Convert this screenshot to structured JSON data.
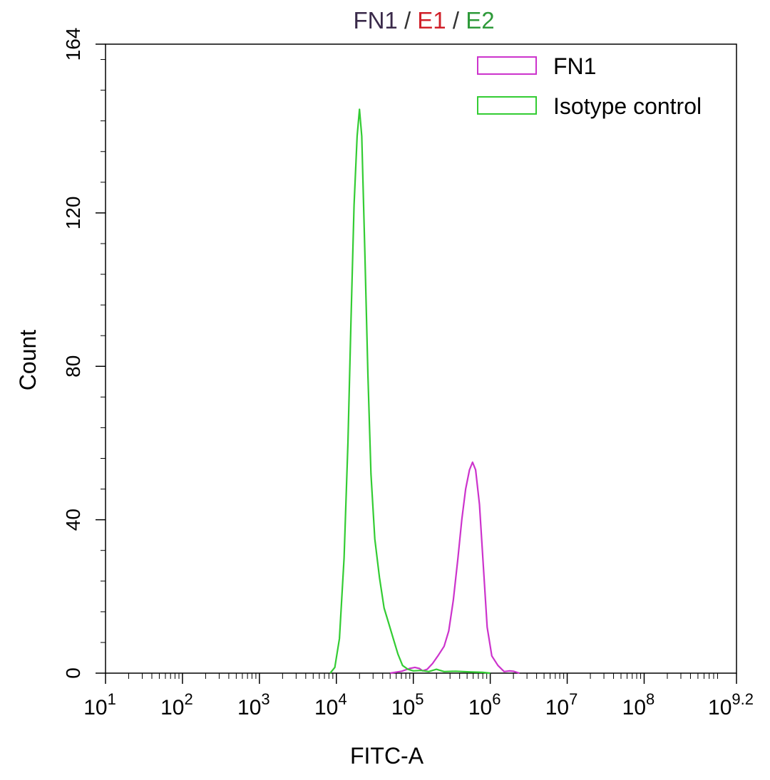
{
  "chart_data": {
    "type": "line",
    "title": {
      "parts": [
        {
          "text": "FN1",
          "color": "#3a2a4a"
        },
        {
          "text": " / ",
          "color": "#333333"
        },
        {
          "text": "E1",
          "color": "#d0202a"
        },
        {
          "text": " / ",
          "color": "#333333"
        },
        {
          "text": "E2",
          "color": "#2e9a3a"
        }
      ]
    },
    "xlabel": "FITC-A",
    "ylabel": "Count",
    "x_scale": "log10",
    "xlim": [
      1,
      9.2
    ],
    "ylim": [
      0,
      164
    ],
    "x_ticks": [
      {
        "base": "10",
        "exp": "1",
        "value": 1
      },
      {
        "base": "10",
        "exp": "2",
        "value": 2
      },
      {
        "base": "10",
        "exp": "3",
        "value": 3
      },
      {
        "base": "10",
        "exp": "4",
        "value": 4
      },
      {
        "base": "10",
        "exp": "5",
        "value": 5
      },
      {
        "base": "10",
        "exp": "6",
        "value": 6
      },
      {
        "base": "10",
        "exp": "7",
        "value": 7
      },
      {
        "base": "10",
        "exp": "8",
        "value": 8
      },
      {
        "base": "10",
        "exp": "9.2",
        "value": 9.2
      }
    ],
    "y_ticks": [
      {
        "label": "0",
        "value": 0
      },
      {
        "label": "40",
        "value": 40
      },
      {
        "label": "80",
        "value": 80
      },
      {
        "label": "120",
        "value": 120
      },
      {
        "label": "164",
        "value": 164
      }
    ],
    "legend_position": "top-right",
    "series": [
      {
        "name": "FN1",
        "color": "#cc33cc",
        "points": [
          [
            4.7,
            0
          ],
          [
            4.85,
            0.5
          ],
          [
            4.95,
            1.2
          ],
          [
            5.02,
            1.5
          ],
          [
            5.08,
            1.2
          ],
          [
            5.12,
            0.6
          ],
          [
            5.18,
            1.0
          ],
          [
            5.25,
            2.5
          ],
          [
            5.32,
            4.5
          ],
          [
            5.4,
            7.0
          ],
          [
            5.46,
            11.0
          ],
          [
            5.52,
            19.0
          ],
          [
            5.58,
            30.0
          ],
          [
            5.63,
            40.0
          ],
          [
            5.68,
            48.0
          ],
          [
            5.73,
            53.0
          ],
          [
            5.77,
            55.0
          ],
          [
            5.81,
            53.0
          ],
          [
            5.86,
            44.0
          ],
          [
            5.91,
            28.0
          ],
          [
            5.96,
            12.0
          ],
          [
            6.02,
            4.5
          ],
          [
            6.1,
            2.0
          ],
          [
            6.18,
            0.4
          ],
          [
            6.25,
            0.6
          ],
          [
            6.3,
            0.5
          ],
          [
            6.38,
            0
          ]
        ]
      },
      {
        "name": "Isotype control",
        "color": "#33cc33",
        "points": [
          [
            3.92,
            0
          ],
          [
            3.98,
            1.5
          ],
          [
            4.04,
            9.0
          ],
          [
            4.1,
            30.0
          ],
          [
            4.15,
            60.0
          ],
          [
            4.19,
            92.0
          ],
          [
            4.23,
            122.0
          ],
          [
            4.27,
            140.0
          ],
          [
            4.3,
            147.0
          ],
          [
            4.33,
            140.0
          ],
          [
            4.37,
            110.0
          ],
          [
            4.41,
            78.0
          ],
          [
            4.45,
            52.0
          ],
          [
            4.5,
            35.0
          ],
          [
            4.56,
            25.0
          ],
          [
            4.62,
            17.0
          ],
          [
            4.68,
            13.0
          ],
          [
            4.74,
            9.0
          ],
          [
            4.8,
            5.0
          ],
          [
            4.86,
            2.0
          ],
          [
            4.93,
            1.0
          ],
          [
            5.0,
            0.6
          ],
          [
            5.1,
            0.7
          ],
          [
            5.2,
            0.4
          ],
          [
            5.3,
            1.0
          ],
          [
            5.4,
            0.4
          ],
          [
            5.55,
            0.5
          ],
          [
            5.75,
            0.3
          ],
          [
            5.9,
            0.2
          ],
          [
            6.0,
            0
          ]
        ]
      }
    ]
  }
}
